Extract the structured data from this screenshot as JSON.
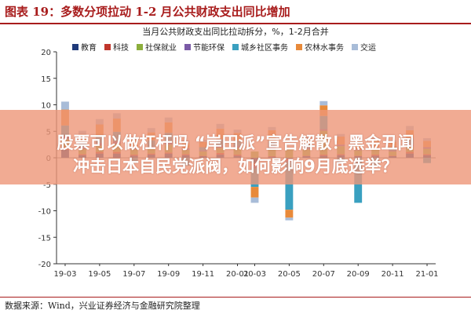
{
  "header": {
    "figure_title": "图表 19：多数分项拉动 1-2 月公共财政支出同比增加"
  },
  "banner": {
    "line1": "股票可以做杠杆吗 “岸田派”宣告解散！黑金丑闻",
    "line2": "冲击日本自民党派阀，如何影响9月底选举？"
  },
  "footer": {
    "source": "数据来源：Wind，兴业证券经济与金融研究院整理"
  },
  "chart_data": {
    "type": "bar",
    "stacked": true,
    "title": "当月公共财政支出同比拉动拆分，%，1-2月合并",
    "ylim": [
      -20,
      20
    ],
    "yticks": [
      -20,
      -15,
      -10,
      -5,
      0,
      5,
      10,
      15,
      20
    ],
    "xtick_labels": [
      "19-03",
      "19-05",
      "19-07",
      "19-09",
      "19-11",
      "20-01",
      "20-03",
      "20-05",
      "20-07",
      "20-09",
      "20-11",
      "21-01"
    ],
    "grid": false,
    "legend_position": "top",
    "categories": [
      "19-03",
      "19-04",
      "19-05",
      "19-06",
      "19-07",
      "19-08",
      "19-09",
      "19-10",
      "19-11",
      "19-12",
      "20-01",
      "20-03",
      "20-04",
      "20-05",
      "20-06",
      "20-07",
      "20-08",
      "20-09",
      "20-10",
      "20-11",
      "20-12",
      "21-01"
    ],
    "series": [
      {
        "name": "教育",
        "color": "#1f3a7a",
        "values": [
          1.5,
          0.5,
          0.8,
          0.8,
          0.4,
          0.6,
          0.8,
          0.5,
          0.3,
          0.6,
          0.4,
          -1.0,
          0.2,
          -0.2,
          0.3,
          0.4,
          0.5,
          0.3,
          0.4,
          0.3,
          0.8,
          0.5
        ]
      },
      {
        "name": "科技",
        "color": "#c0352b",
        "values": [
          0.5,
          0.2,
          0.3,
          0.3,
          0.2,
          0.2,
          0.2,
          0.2,
          0.1,
          0.3,
          0.2,
          -0.5,
          0.1,
          -0.3,
          0.1,
          0.2,
          0.2,
          0.1,
          0.2,
          0.1,
          0.3,
          0.2
        ]
      },
      {
        "name": "社保就业",
        "color": "#8cae3c",
        "values": [
          1.5,
          1.0,
          1.2,
          1.5,
          1.0,
          1.0,
          1.5,
          0.8,
          0.8,
          1.0,
          1.3,
          1.2,
          1.5,
          1.8,
          1.2,
          4.5,
          1.5,
          1.0,
          1.0,
          0.8,
          1.0,
          1.0
        ]
      },
      {
        "name": "节能环保",
        "color": "#7a5aa6",
        "values": [
          0.6,
          0.3,
          0.5,
          0.5,
          0.3,
          0.3,
          0.4,
          0.3,
          0.2,
          0.4,
          0.3,
          -0.5,
          0.2,
          -0.3,
          0.2,
          0.3,
          0.3,
          0.2,
          0.3,
          0.2,
          0.4,
          0.3
        ]
      },
      {
        "name": "城乡社区事务",
        "color": "#3aa0c0",
        "values": [
          2.0,
          1.0,
          1.5,
          1.8,
          -1.0,
          1.2,
          1.8,
          -1.5,
          0.6,
          1.2,
          1.0,
          -3.5,
          1.2,
          -9.0,
          0.8,
          2.5,
          -1.0,
          -8.5,
          -1.5,
          0.6,
          1.2,
          -1.0
        ]
      },
      {
        "name": "农林水事务",
        "color": "#e88a3a",
        "values": [
          3.0,
          1.5,
          2.0,
          2.5,
          1.5,
          1.5,
          2.0,
          1.0,
          1.0,
          2.0,
          1.5,
          -2.0,
          2.0,
          -1.5,
          1.0,
          2.0,
          1.5,
          1.5,
          1.5,
          1.0,
          1.5,
          1.2
        ]
      },
      {
        "name": "交运",
        "color": "#a8bcd8",
        "values": [
          1.5,
          0.6,
          1.0,
          1.0,
          0.5,
          0.8,
          0.9,
          0.5,
          0.4,
          0.9,
          0.6,
          -1.0,
          0.6,
          -0.5,
          0.4,
          0.8,
          0.5,
          0.4,
          0.4,
          0.3,
          0.8,
          0.5
        ]
      }
    ]
  }
}
